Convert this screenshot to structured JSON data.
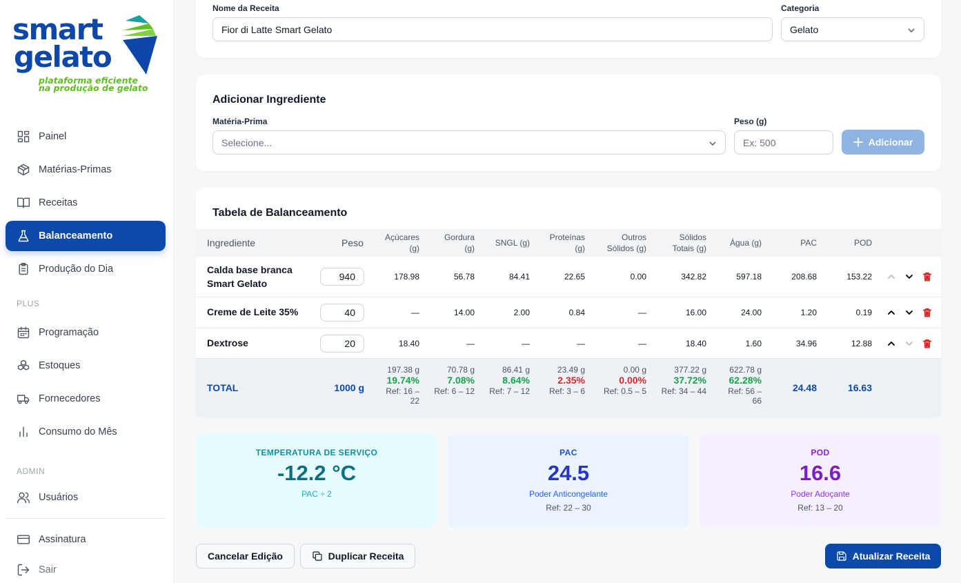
{
  "brand": {
    "word1": "smart",
    "word2": "gelato",
    "tagline1": "plataforma eficiente",
    "tagline2": "na produção de gelato",
    "colors": {
      "primary": "#0b4aa8",
      "accent_green": "#5fbf20",
      "accent_teal": "#1aa0a0"
    }
  },
  "sidebar": {
    "items": [
      {
        "label": "Painel",
        "icon": "grid-icon"
      },
      {
        "label": "Matérias-Primas",
        "icon": "box-icon"
      },
      {
        "label": "Receitas",
        "icon": "book-icon"
      },
      {
        "label": "Balanceamento",
        "icon": "flask-icon",
        "active": true
      },
      {
        "label": "Produção do Dia",
        "icon": "clipboard-icon"
      }
    ],
    "plus_label": "PLUS",
    "plus_items": [
      {
        "label": "Programação",
        "icon": "calendar-icon"
      },
      {
        "label": "Estoques",
        "icon": "boxes-icon"
      },
      {
        "label": "Fornecedores",
        "icon": "truck-icon"
      },
      {
        "label": "Consumo do Mês",
        "icon": "bar-chart-icon"
      }
    ],
    "admin_label": "ADMIN",
    "admin_items": [
      {
        "label": "Usuários",
        "icon": "users-icon"
      }
    ],
    "bottom_items": [
      {
        "label": "Assinatura",
        "icon": "credit-card-icon"
      },
      {
        "label": "Sair",
        "icon": "logout-icon"
      }
    ]
  },
  "recipe": {
    "name_label": "Nome da Receita",
    "name_value": "Fior di Latte Smart Gelato",
    "category_label": "Categoria",
    "category_value": "Gelato"
  },
  "add_ingredient": {
    "title": "Adicionar Ingrediente",
    "material_label": "Matéria-Prima",
    "material_placeholder": "Selecione...",
    "weight_label": "Peso (g)",
    "weight_placeholder": "Ex: 500",
    "add_button": "Adicionar"
  },
  "table": {
    "title": "Tabela de Balanceamento",
    "headers": {
      "ingredient": "Ingrediente",
      "weight": "Peso",
      "sugars_1": "Açúcares",
      "sugars_2": "(g)",
      "fat_1": "Gordura",
      "fat_2": "(g)",
      "sngl": "SNGL (g)",
      "protein_1": "Proteínas",
      "protein_2": "(g)",
      "other_1": "Outros",
      "other_2": "Sólidos (g)",
      "solids_1": "Sólidos",
      "solids_2": "Totais (g)",
      "water": "Água (g)",
      "pac": "PAC",
      "pod": "POD"
    },
    "rows": [
      {
        "name_1": "Calda base branca",
        "name_2": "Smart Gelato",
        "weight": "940",
        "sugars": "178.98",
        "fat": "56.78",
        "sngl": "84.41",
        "protein": "22.65",
        "other": "0.00",
        "solids": "342.82",
        "water": "597.18",
        "pac": "208.68",
        "pod": "153.22"
      },
      {
        "name_1": "Creme de Leite 35%",
        "name_2": "",
        "weight": "40",
        "sugars": "—",
        "fat": "14.00",
        "sngl": "2.00",
        "protein": "0.84",
        "other": "—",
        "solids": "16.00",
        "water": "24.00",
        "pac": "1.20",
        "pod": "0.19"
      },
      {
        "name_1": "Dextrose",
        "name_2": "",
        "weight": "20",
        "sugars": "18.40",
        "fat": "—",
        "sngl": "—",
        "protein": "—",
        "other": "—",
        "solids": "18.40",
        "water": "1.60",
        "pac": "34.96",
        "pod": "12.88"
      }
    ],
    "total": {
      "label": "TOTAL",
      "weight": "1000 g",
      "sugars": {
        "g": "197.38 g",
        "pct": "19.74%",
        "ref_1": "Ref: 16 –",
        "ref_2": "22"
      },
      "fat": {
        "g": "70.78 g",
        "pct": "7.08%",
        "ref_1": "Ref: 6 – 12",
        "ref_2": ""
      },
      "sngl": {
        "g": "86.41 g",
        "pct": "8.64%",
        "ref_1": "Ref: 7 – 12",
        "ref_2": ""
      },
      "protein": {
        "g": "23.49 g",
        "pct": "2.35%",
        "ref_1": "Ref: 3 – 6",
        "ref_2": ""
      },
      "other": {
        "g": "0.00 g",
        "pct": "0.00%",
        "ref_1": "Ref: 0.5 – 5",
        "ref_2": ""
      },
      "solids": {
        "g": "377.22 g",
        "pct": "37.72%",
        "ref_1": "Ref: 34 – 44",
        "ref_2": ""
      },
      "water": {
        "g": "622.78 g",
        "pct": "62.28%",
        "ref_1": "Ref: 56 –",
        "ref_2": "66"
      },
      "pac": "24.48",
      "pod": "16.63"
    }
  },
  "stats": [
    {
      "title": "TEMPERATURA DE SERVIÇO",
      "value": "-12.2 °C",
      "sub": "PAC ÷ 2",
      "ref": ""
    },
    {
      "title": "PAC",
      "value": "24.5",
      "sub": "Poder Anticongelante",
      "ref": "Ref: 22 – 30"
    },
    {
      "title": "POD",
      "value": "16.6",
      "sub": "Poder Adoçante",
      "ref": "Ref: 13 – 20"
    }
  ],
  "actions": {
    "cancel": "Cancelar Edição",
    "duplicate": "Duplicar Receita",
    "update": "Atualizar Receita"
  }
}
